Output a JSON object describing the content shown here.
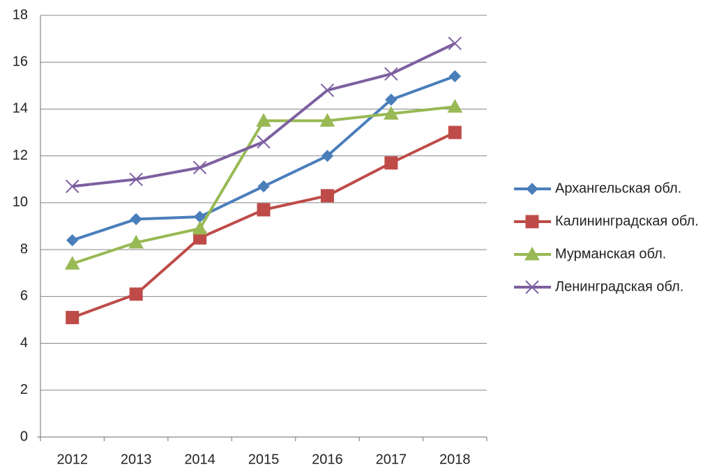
{
  "chart_data": {
    "type": "line",
    "categories": [
      "2012",
      "2013",
      "2014",
      "2015",
      "2016",
      "2017",
      "2018"
    ],
    "series": [
      {
        "name": "Архангельская обл.",
        "color": "#4a7ebb",
        "marker": "diamond",
        "values": [
          8.4,
          9.3,
          9.4,
          10.7,
          12.0,
          14.4,
          15.4
        ]
      },
      {
        "name": "Калининградская обл.",
        "color": "#be4b48",
        "marker": "square",
        "values": [
          5.1,
          6.1,
          8.5,
          9.7,
          10.3,
          11.7,
          13.0
        ]
      },
      {
        "name": "Мурманская обл.",
        "color": "#98b954",
        "marker": "triangle",
        "values": [
          7.4,
          8.3,
          8.9,
          13.5,
          13.5,
          13.8,
          14.1
        ]
      },
      {
        "name": "Ленинградская обл.",
        "color": "#7d60a0",
        "marker": "x",
        "values": [
          10.7,
          11.0,
          11.5,
          12.6,
          14.8,
          15.5,
          16.8
        ]
      }
    ],
    "ylim": [
      0,
      18
    ],
    "yticks": [
      0,
      2,
      4,
      6,
      8,
      10,
      12,
      14,
      16,
      18
    ],
    "grid": true,
    "legend": "right"
  }
}
